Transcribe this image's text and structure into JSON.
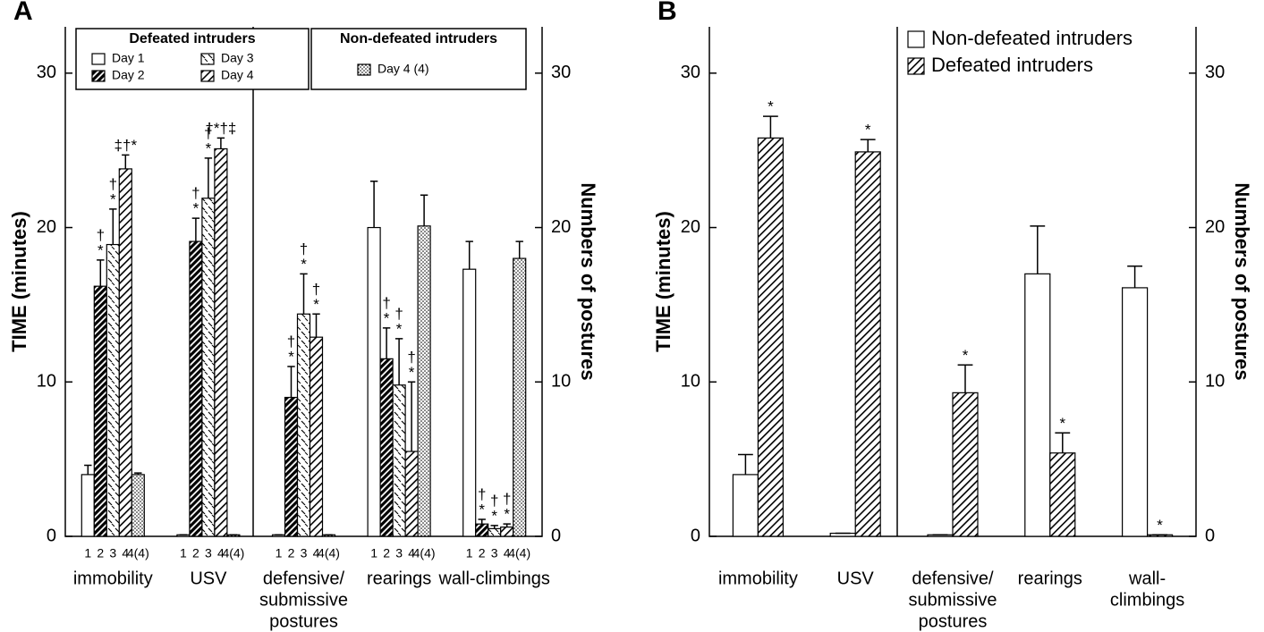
{
  "chart_data": [
    {
      "type": "bar",
      "label": "A",
      "ylabel": "TIME (minutes)",
      "y2label": "Numbers of postures",
      "categories": [
        [
          "immobility"
        ],
        [
          "USV"
        ],
        [
          "defensive/",
          "submissive",
          "postures"
        ],
        [
          "rearings"
        ],
        [
          "wall-climbings"
        ]
      ],
      "series": [
        {
          "name": "Day 1",
          "group": "Defeated intruders",
          "bar_label": "1",
          "color": "#ffffff",
          "pattern": "none",
          "values": [
            4,
            0.1,
            0.1,
            20,
            17.3
          ],
          "errors": [
            0.6,
            0,
            0,
            3,
            1.8
          ],
          "annotations": [
            null,
            null,
            null,
            null,
            null
          ]
        },
        {
          "name": "Day 2",
          "group": "Defeated intruders",
          "bar_label": "2",
          "color": "#000000",
          "pattern": "dense",
          "values": [
            16.2,
            19.1,
            9,
            11.5,
            0.8
          ],
          "errors": [
            1.7,
            1.5,
            2,
            2,
            0.3
          ],
          "annotations": [
            [
              "†",
              "*"
            ],
            [
              "†",
              "*"
            ],
            [
              "†",
              "*"
            ],
            [
              "†",
              "*"
            ],
            [
              "†",
              "*"
            ]
          ]
        },
        {
          "name": "Day 3",
          "group": "Defeated intruders",
          "bar_label": "3",
          "color": "#000000",
          "pattern": "dash",
          "values": [
            18.9,
            21.9,
            14.4,
            9.8,
            0.5
          ],
          "errors": [
            2.3,
            2.6,
            2.6,
            3,
            0.2
          ],
          "annotations": [
            [
              "†",
              "*"
            ],
            [
              "†",
              "*"
            ],
            [
              "†",
              "*"
            ],
            [
              "†",
              "*"
            ],
            [
              "†",
              "*"
            ]
          ]
        },
        {
          "name": "Day 4",
          "group": "Defeated intruders",
          "bar_label": "4",
          "color": "#000000",
          "pattern": "hatch",
          "values": [
            23.8,
            25.1,
            12.9,
            5.5,
            0.6
          ],
          "errors": [
            0.9,
            0.7,
            1.5,
            4.5,
            0.2
          ],
          "annotations": [
            [
              "‡†*"
            ],
            [
              "†*†‡"
            ],
            [
              "†",
              "*"
            ],
            [
              "†",
              "*"
            ],
            [
              "†",
              "*"
            ]
          ]
        },
        {
          "name": "Day 4 (4)",
          "group": "Non-defeated intruders",
          "bar_label": "4(4)",
          "color": "#000000",
          "pattern": "dots",
          "values": [
            4,
            0.1,
            0.1,
            20.1,
            18
          ],
          "errors": [
            0.1,
            0,
            0,
            2,
            1.1
          ],
          "annotations": [
            null,
            null,
            null,
            null,
            null
          ]
        }
      ],
      "ylim": [
        0,
        33
      ],
      "yticks": [
        0,
        10,
        20,
        30
      ],
      "y2lim": [
        0,
        33
      ],
      "y2ticks": [
        0,
        10,
        20,
        30
      ],
      "legend": "top"
    },
    {
      "type": "bar",
      "label": "B",
      "ylabel": "TIME (minutes)",
      "y2label": "Numbers of postures",
      "categories": [
        [
          "immobility"
        ],
        [
          "USV"
        ],
        [
          "defensive/",
          "submissive",
          "postures"
        ],
        [
          "rearings"
        ],
        [
          "wall-",
          "climbings"
        ]
      ],
      "series": [
        {
          "name": "Non-defeated intruders",
          "color": "#ffffff",
          "pattern": "none",
          "values": [
            4,
            0.2,
            0.1,
            17,
            16.1
          ],
          "errors": [
            1.3,
            0,
            0,
            3.1,
            1.4
          ],
          "annotations": [
            null,
            null,
            null,
            null,
            null
          ]
        },
        {
          "name": "Defeated intruders",
          "color": "#000000",
          "pattern": "hatch",
          "values": [
            25.8,
            24.9,
            9.3,
            5.4,
            0.1
          ],
          "errors": [
            1.4,
            0.8,
            1.8,
            1.3,
            0
          ],
          "annotations": [
            [
              "*"
            ],
            [
              "*"
            ],
            [
              "*"
            ],
            [
              "*"
            ],
            [
              "*"
            ]
          ]
        }
      ],
      "ylim": [
        0,
        33
      ],
      "yticks": [
        0,
        10,
        20,
        30
      ],
      "y2lim": [
        0,
        33
      ],
      "y2ticks": [
        0,
        10,
        20,
        30
      ],
      "legend": "upper right"
    }
  ]
}
